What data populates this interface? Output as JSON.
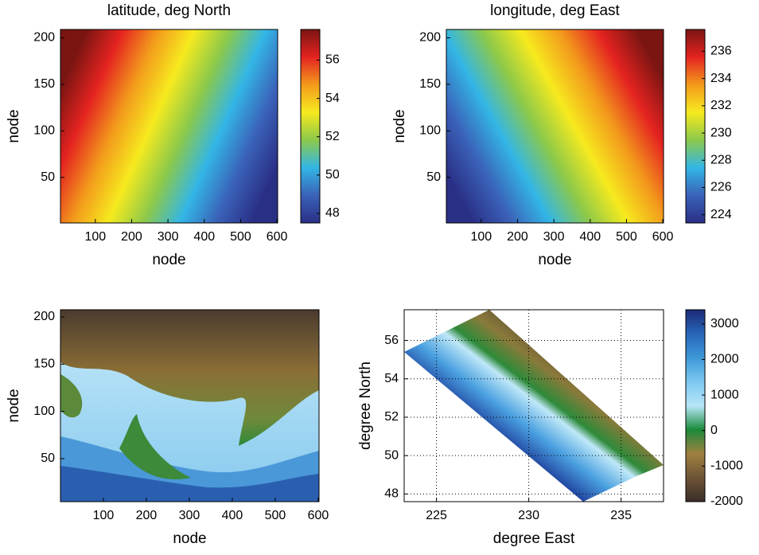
{
  "chart_data": [
    {
      "type": "heatmap",
      "title": "latitude, deg North",
      "x_label": "node",
      "y_label": "node",
      "xlim": [
        4,
        602
      ],
      "xticks": [
        100,
        200,
        300,
        400,
        500,
        600
      ],
      "ylim": [
        1,
        209
      ],
      "yticks": [
        50,
        100,
        150,
        200
      ],
      "colormap": [
        "#2a2f86",
        "#3a62b8",
        "#33b6e6",
        "#8cc94a",
        "#f6ea1e",
        "#f39a1c",
        "#e42320",
        "#7a1512"
      ],
      "colorbar": {
        "lim": [
          47.5,
          57.6
        ],
        "ticks": [
          48,
          50,
          52,
          54,
          56
        ]
      }
    },
    {
      "type": "heatmap",
      "title": "longitude, deg East",
      "x_label": "node",
      "y_label": "node",
      "xlim": [
        4,
        602
      ],
      "xticks": [
        100,
        200,
        300,
        400,
        500,
        600
      ],
      "ylim": [
        1,
        209
      ],
      "yticks": [
        50,
        100,
        150,
        200
      ],
      "colormap": [
        "#2a2f86",
        "#3a62b8",
        "#33b6e6",
        "#8cc94a",
        "#f6ea1e",
        "#f39a1c",
        "#e42320",
        "#7a1512"
      ],
      "colorbar": {
        "lim": [
          223.4,
          237.6
        ],
        "ticks": [
          224,
          226,
          228,
          230,
          232,
          234,
          236
        ]
      }
    },
    {
      "type": "image",
      "x_label": "node",
      "y_label": "node",
      "xlim": [
        0,
        602
      ],
      "xticks": [
        100,
        200,
        300,
        400,
        500,
        600
      ],
      "ylim": [
        4.5,
        207.6
      ],
      "yticks": [
        50,
        100,
        150,
        200
      ]
    },
    {
      "type": "map",
      "x_label": "degree East",
      "y_label": "degree North",
      "xlim": [
        223.25,
        237.3
      ],
      "xticks": [
        225,
        230,
        235
      ],
      "ylim": [
        47.6,
        57.6
      ],
      "yticks": [
        48,
        50,
        52,
        54,
        56
      ],
      "grid": true,
      "colormap": [
        "#3a2e2a",
        "#6e5436",
        "#a08040",
        "#1a8a3a",
        "#b8e6f8",
        "#7cc8f0",
        "#3e98d8",
        "#2866b8",
        "#1c2a78"
      ],
      "colorbar": {
        "lim": [
          -2000,
          3400
        ],
        "ticks": [
          -2000,
          -1000,
          0,
          1000,
          2000,
          3000
        ]
      }
    }
  ]
}
